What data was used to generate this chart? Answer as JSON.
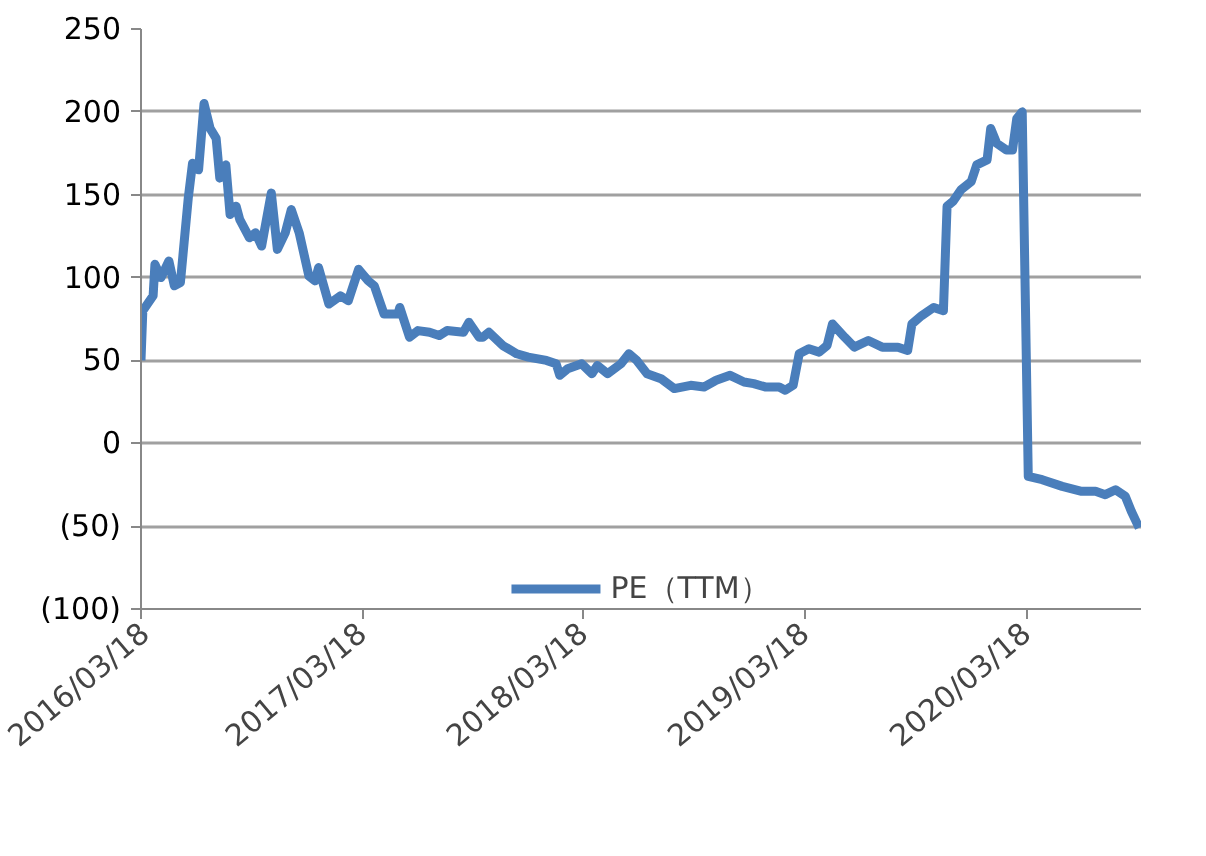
{
  "chart_data": {
    "type": "line",
    "x": [
      "2016-03-18",
      "2016-03-21",
      "2016-04-07",
      "2016-04-10",
      "2016-04-20",
      "2016-05-03",
      "2016-05-12",
      "2016-05-22",
      "2016-06-04",
      "2016-06-11",
      "2016-06-21",
      "2016-06-30",
      "2016-07-10",
      "2016-07-20",
      "2016-07-26",
      "2016-08-05",
      "2016-08-12",
      "2016-08-22",
      "2016-08-28",
      "2016-09-13",
      "2016-09-23",
      "2016-10-03",
      "2016-10-19",
      "2016-10-29",
      "2016-11-11",
      "2016-11-21",
      "2016-12-04",
      "2016-12-20",
      "2016-12-30",
      "2017-01-05",
      "2017-01-22",
      "2017-02-10",
      "2017-02-23",
      "2017-03-12",
      "2017-03-28",
      "2017-04-07",
      "2017-04-23",
      "2017-05-16",
      "2017-05-19",
      "2017-06-04",
      "2017-06-18",
      "2017-07-07",
      "2017-07-23",
      "2017-08-05",
      "2017-09-01",
      "2017-09-10",
      "2017-09-27",
      "2017-10-03",
      "2017-10-13",
      "2017-11-05",
      "2017-11-28",
      "2017-12-17",
      "2018-01-16",
      "2018-02-01",
      "2018-02-07",
      "2018-02-20",
      "2018-03-15",
      "2018-04-01",
      "2018-04-10",
      "2018-04-27",
      "2018-05-19",
      "2018-06-01",
      "2018-06-14",
      "2018-07-01",
      "2018-07-24",
      "2018-08-15",
      "2018-09-11",
      "2018-10-03",
      "2018-10-23",
      "2018-11-15",
      "2018-12-08",
      "2018-12-24",
      "2019-01-12",
      "2019-02-04",
      "2019-02-14",
      "2019-02-27",
      "2019-03-09",
      "2019-03-25",
      "2019-04-11",
      "2019-04-24",
      "2019-05-03",
      "2019-05-23",
      "2019-06-08",
      "2019-07-01",
      "2019-07-24",
      "2019-08-19",
      "2019-09-04",
      "2019-09-11",
      "2019-09-27",
      "2019-10-17",
      "2019-11-02",
      "2019-11-08",
      "2019-11-18",
      "2019-12-01",
      "2019-12-18",
      "2019-12-27",
      "2020-01-13",
      "2020-01-19",
      "2020-01-29",
      "2020-02-14",
      "2020-02-24",
      "2020-03-02",
      "2020-03-11",
      "2020-03-21",
      "2020-04-13",
      "2020-05-16",
      "2020-06-17",
      "2020-07-10",
      "2020-07-26",
      "2020-08-12",
      "2020-08-28",
      "2020-09-07",
      "2020-09-20"
    ],
    "series": [
      {
        "name": "PE（TTM）",
        "color": "#4a7ebb",
        "values": [
          50,
          80,
          89,
          108,
          100,
          110,
          95,
          97,
          148,
          169,
          165,
          205,
          190,
          184,
          160,
          168,
          138,
          143,
          135,
          124,
          127,
          119,
          151,
          117,
          127,
          141,
          127,
          101,
          98,
          106,
          84,
          89,
          86,
          105,
          98,
          95,
          78,
          78,
          82,
          64,
          68,
          67,
          65,
          68,
          67,
          73,
          64,
          64,
          67,
          59,
          54,
          52,
          50,
          48,
          41,
          45,
          48,
          42,
          47,
          42,
          48,
          54,
          50,
          42,
          39,
          33,
          35,
          34,
          38,
          41,
          37,
          36,
          34,
          34,
          32,
          35,
          54,
          57,
          55,
          59,
          72,
          64,
          58,
          62,
          58,
          58,
          56,
          72,
          77,
          82,
          80,
          143,
          146,
          153,
          158,
          168,
          171,
          190,
          181,
          177,
          177,
          196,
          200,
          -20,
          -22,
          -26,
          -29,
          -29,
          -31,
          -28,
          -32,
          -41,
          -51
        ]
      }
    ],
    "xlim": [
      "2016-03-18",
      "2020-09-23"
    ],
    "xticks": [
      {
        "value": "2016-03-18",
        "label": "2016/03/18"
      },
      {
        "value": "2017-03-18",
        "label": "2017/03/18"
      },
      {
        "value": "2018-03-18",
        "label": "2018/03/18"
      },
      {
        "value": "2019-03-18",
        "label": "2019/03/18"
      },
      {
        "value": "2020-03-18",
        "label": "2020/03/18"
      }
    ],
    "ylim": [
      -100,
      250
    ],
    "yticks": [
      250,
      200,
      150,
      100,
      50,
      0,
      {
        "value": -50,
        "label": "(50)"
      },
      {
        "value": -100,
        "label": "(100)"
      }
    ],
    "grid": "y",
    "legend": "bottom",
    "marker": "none",
    "line_style": "solid"
  }
}
